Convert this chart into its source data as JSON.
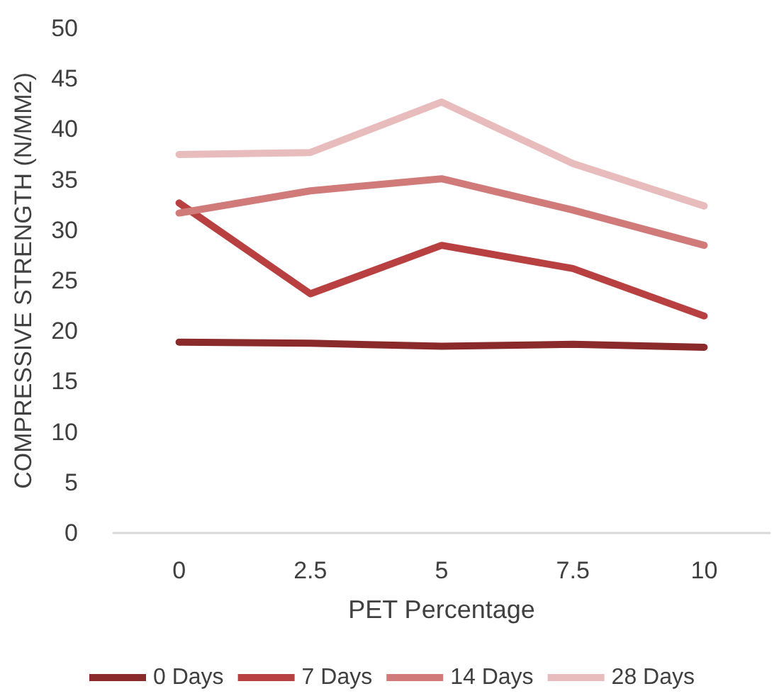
{
  "chart_data": {
    "type": "line",
    "xlabel": "PET Percentage",
    "ylabel": "COMPRESSIVE STRENGTH (N/MM2)",
    "categories": [
      "0",
      "2.5",
      "5",
      "7.5",
      "10"
    ],
    "series": [
      {
        "name": "0 Days",
        "color": "#8b2a2a",
        "values": [
          18.9,
          18.8,
          18.5,
          18.7,
          18.4
        ]
      },
      {
        "name": "7 Days",
        "color": "#b84040",
        "values": [
          32.7,
          23.7,
          28.5,
          26.2,
          21.5
        ]
      },
      {
        "name": "14 Days",
        "color": "#d07a7a",
        "values": [
          31.7,
          33.9,
          35.1,
          32,
          28.5
        ]
      },
      {
        "name": "28 Days",
        "color": "#e8bcbc",
        "values": [
          37.5,
          37.7,
          42.7,
          36.6,
          32.4
        ]
      }
    ],
    "ylim": [
      0,
      50
    ],
    "yticks": [
      0,
      5,
      10,
      15,
      20,
      25,
      30,
      35,
      40,
      45,
      50
    ],
    "grid": false,
    "legend": "bottom",
    "marker": "none",
    "line_style": "solid"
  }
}
